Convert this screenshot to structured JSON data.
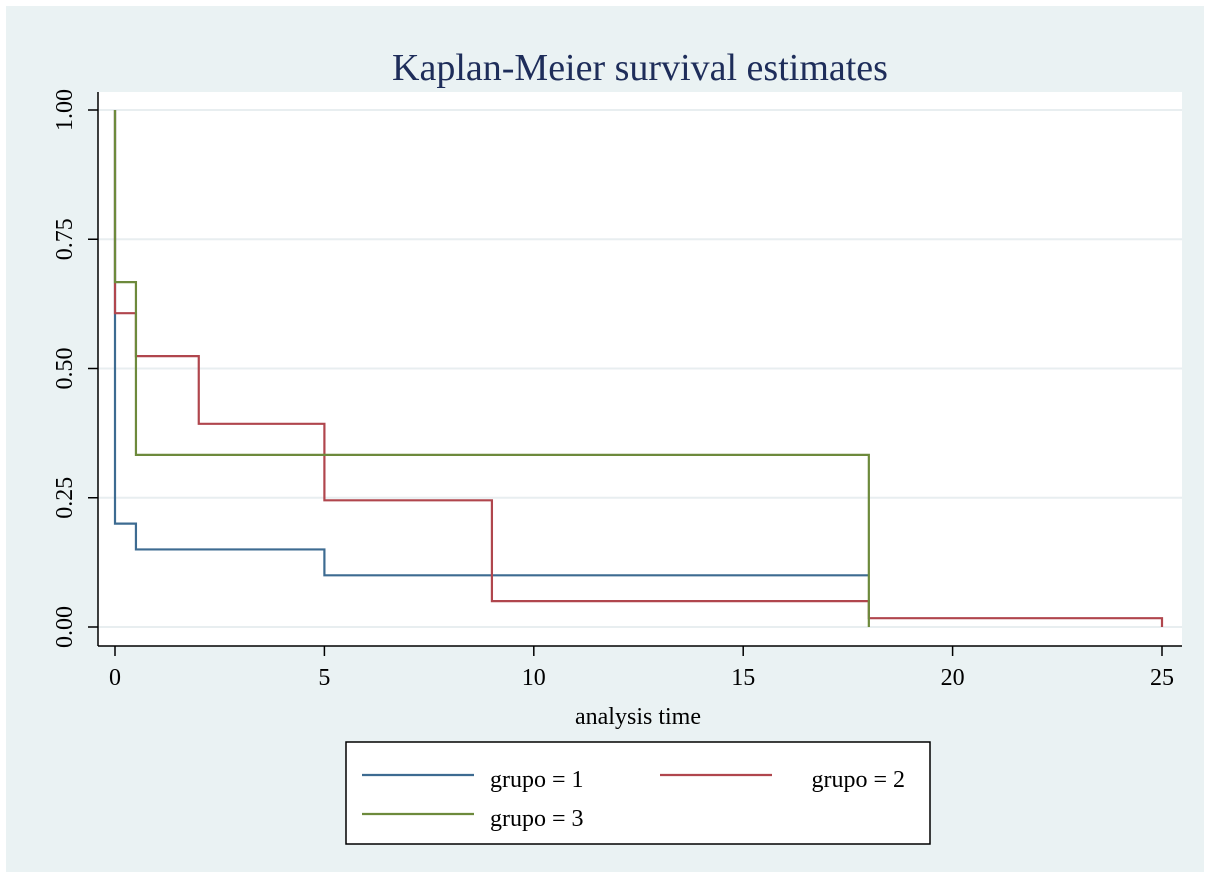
{
  "chart_data": {
    "type": "line",
    "title": "Kaplan-Meier survival estimates",
    "xlabel": "analysis time",
    "ylabel": "",
    "xlim": [
      0,
      25
    ],
    "ylim": [
      0,
      1
    ],
    "xticks": [
      0,
      5,
      10,
      15,
      20,
      25
    ],
    "yticks": [
      "0.00",
      "0.25",
      "0.50",
      "0.75",
      "1.00"
    ],
    "grid": true,
    "legend_position": "bottom",
    "series": [
      {
        "name": "grupo = 1",
        "color": "#3d6b91",
        "steps": [
          [
            0,
            1.0
          ],
          [
            0,
            0.2
          ],
          [
            0.5,
            0.15
          ],
          [
            5,
            0.1
          ],
          [
            18,
            0.1
          ]
        ]
      },
      {
        "name": "grupo = 2",
        "color": "#b0464d",
        "steps": [
          [
            0,
            1.0
          ],
          [
            0,
            0.607
          ],
          [
            0.5,
            0.524
          ],
          [
            2,
            0.393
          ],
          [
            5,
            0.245
          ],
          [
            9,
            0.05
          ],
          [
            18,
            0.017
          ],
          [
            25,
            0.0
          ]
        ]
      },
      {
        "name": "grupo = 3",
        "color": "#6d8a3c",
        "steps": [
          [
            0,
            1.0
          ],
          [
            0,
            0.667
          ],
          [
            0.5,
            0.333
          ],
          [
            18,
            0.0
          ]
        ]
      }
    ]
  }
}
